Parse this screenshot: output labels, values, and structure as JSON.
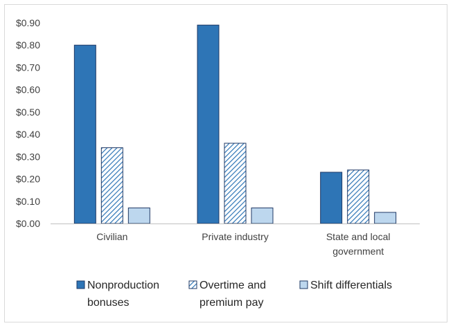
{
  "chart_data": {
    "type": "bar",
    "categories": [
      "Civilian",
      "Private industry",
      "State and local government"
    ],
    "category_lines": [
      [
        "Civilian"
      ],
      [
        "Private industry"
      ],
      [
        "State and local",
        "government"
      ]
    ],
    "series": [
      {
        "name": "Nonproduction bonuses",
        "legend_lines": [
          "Nonproduction",
          "bonuses"
        ],
        "values": [
          0.8,
          0.89,
          0.23
        ],
        "color": "#2e75b6",
        "pattern": "solid"
      },
      {
        "name": "Overtime and premium pay",
        "legend_lines": [
          "Overtime and",
          "premium pay"
        ],
        "values": [
          0.34,
          0.36,
          0.24
        ],
        "color": "#2e75b6",
        "pattern": "diagonal-hatch"
      },
      {
        "name": "Shift differentials",
        "legend_lines": [
          "Shift differentials"
        ],
        "values": [
          0.07,
          0.07,
          0.05
        ],
        "color": "#bdd7ee",
        "pattern": "solid"
      }
    ],
    "ylim": [
      0,
      0.9
    ],
    "yticks": [
      "$0.00",
      "$0.10",
      "$0.20",
      "$0.30",
      "$0.40",
      "$0.50",
      "$0.60",
      "$0.70",
      "$0.80",
      "$0.90"
    ],
    "legend_position": "bottom",
    "grid": false,
    "title": "",
    "xlabel": "",
    "ylabel": ""
  }
}
